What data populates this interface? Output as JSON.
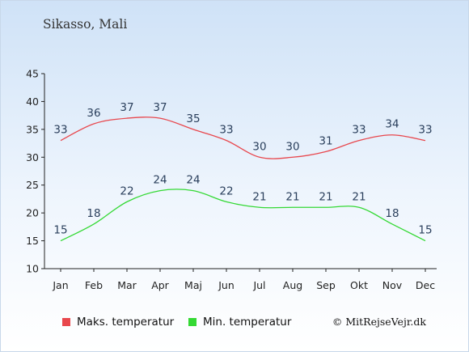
{
  "location": "Sikasso, Mali",
  "credit": "© MitRejseVejr.dk",
  "colors": {
    "max": "#e8474d",
    "min": "#34d934",
    "axis": "#222222",
    "label": "#2a3f5c"
  },
  "chart_data": {
    "type": "line",
    "title": "",
    "xlabel": "",
    "ylabel": "",
    "categories": [
      "Jan",
      "Feb",
      "Mar",
      "Apr",
      "Maj",
      "Jun",
      "Jul",
      "Aug",
      "Sep",
      "Okt",
      "Nov",
      "Dec"
    ],
    "ylim": [
      10,
      45
    ],
    "yticks": [
      10,
      15,
      20,
      25,
      30,
      35,
      40,
      45
    ],
    "grid": false,
    "legend_position": "bottom-left",
    "series": [
      {
        "name": "Maks. temperatur",
        "values": [
          33,
          36,
          37,
          37,
          35,
          33,
          30,
          30,
          31,
          33,
          34,
          33
        ]
      },
      {
        "name": "Min. temperatur",
        "values": [
          15,
          18,
          22,
          24,
          24,
          22,
          21,
          21,
          21,
          21,
          18,
          15
        ]
      }
    ]
  }
}
